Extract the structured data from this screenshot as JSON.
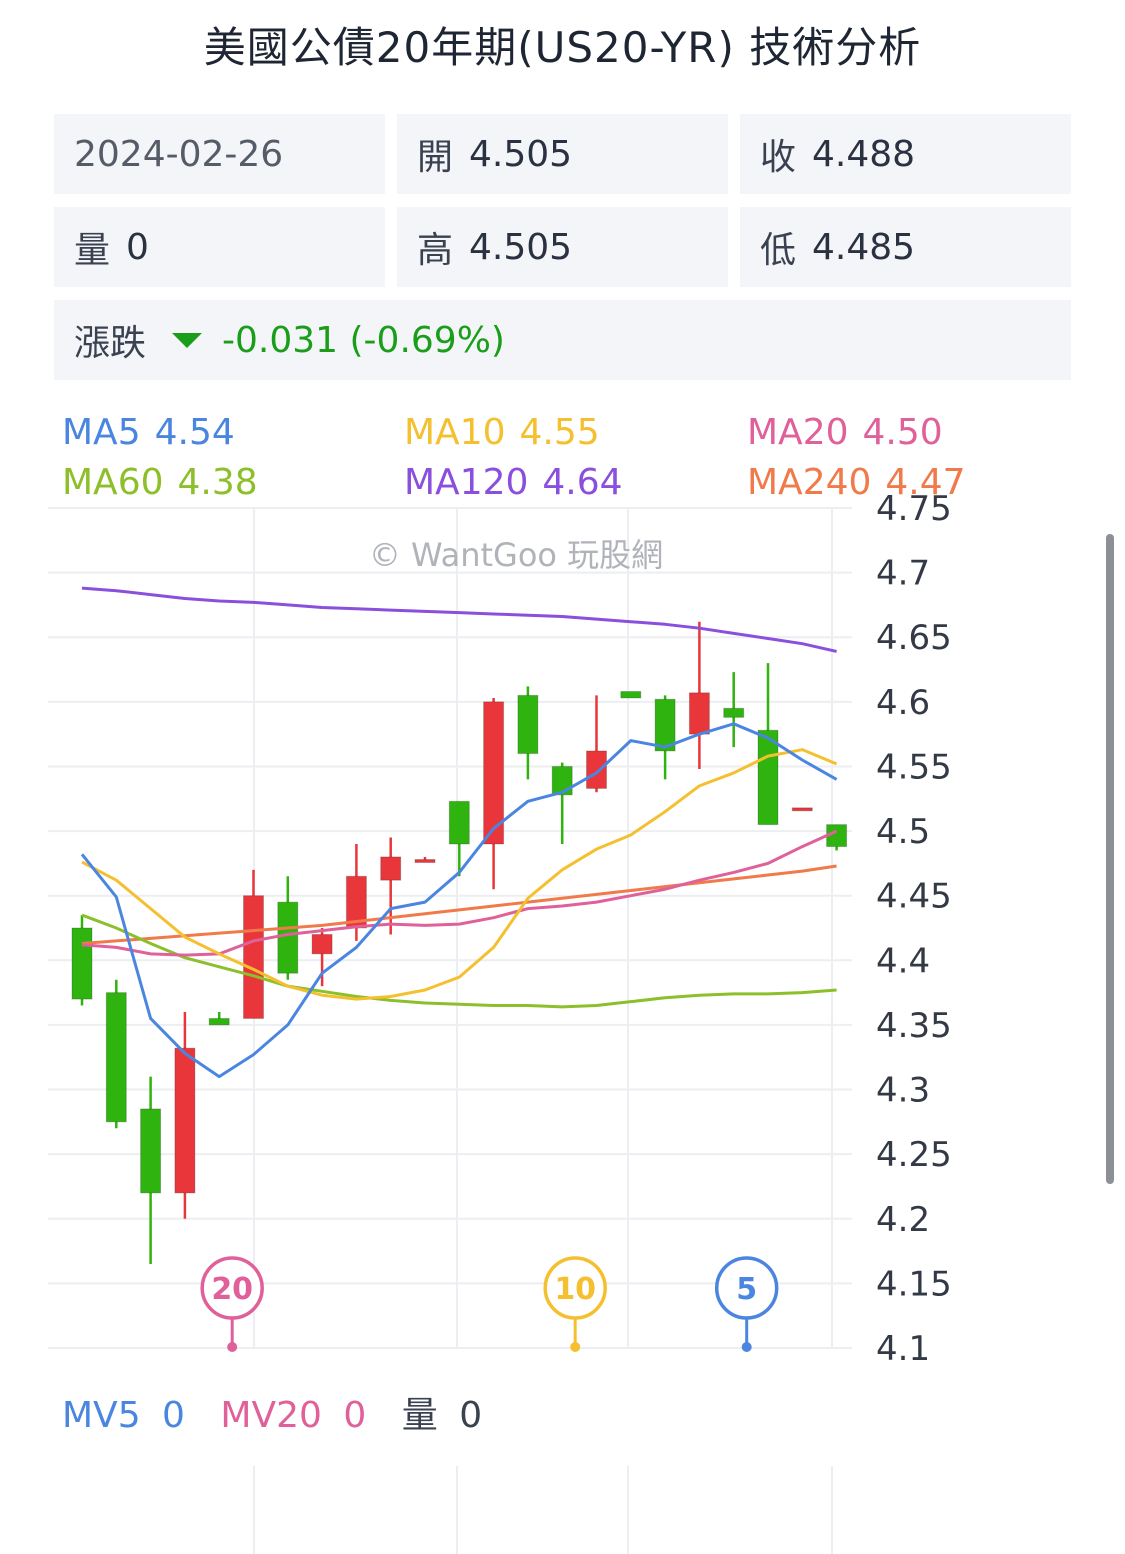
{
  "title": "美國公債20年期(US20-YR) 技術分析",
  "quote": {
    "date": "2024-02-26",
    "open_label": "開",
    "open": "4.505",
    "close_label": "收",
    "close": "4.488",
    "volume_label": "量",
    "volume": "0",
    "high_label": "高",
    "high": "4.505",
    "low_label": "低",
    "low": "4.485",
    "change_label": "漲跌",
    "change": "-0.031 (-0.69%)"
  },
  "ma_legend": [
    {
      "label": "MA5",
      "value": "4.54",
      "color": "#4a86e0"
    },
    {
      "label": "MA10",
      "value": "4.55",
      "color": "#f4c030"
    },
    {
      "label": "MA20",
      "value": "4.50",
      "color": "#e0609a"
    },
    {
      "label": "MA60",
      "value": "4.38",
      "color": "#8cbf2a"
    },
    {
      "label": "MA120",
      "value": "4.64",
      "color": "#8a4fdc"
    },
    {
      "label": "MA240",
      "value": "4.47",
      "color": "#f07a4a"
    }
  ],
  "watermark": "© WantGoo 玩股網",
  "volume_legend": {
    "mv5_label": "MV5",
    "mv5": "0",
    "mv5_color": "#4a86e0",
    "mv20_label": "MV20",
    "mv20": "0",
    "mv20_color": "#e0609a",
    "vol_label": "量",
    "vol": "0"
  },
  "colors": {
    "up": "#e8363a",
    "down": "#2fb30f",
    "grid": "#eceef1",
    "axis_text": "#333a46"
  },
  "chart_data": {
    "type": "candlestick",
    "ylim": [
      4.1,
      4.75
    ],
    "y_ticks": [
      "4.75",
      "4.7",
      "4.65",
      "4.6",
      "4.55",
      "4.5",
      "4.45",
      "4.4",
      "4.35",
      "4.3",
      "4.25",
      "4.2",
      "4.15",
      "4.1"
    ],
    "candles": [
      {
        "o": 4.425,
        "h": 4.435,
        "l": 4.365,
        "c": 4.37
      },
      {
        "o": 4.375,
        "h": 4.385,
        "l": 4.27,
        "c": 4.275
      },
      {
        "o": 4.285,
        "h": 4.31,
        "l": 4.165,
        "c": 4.22
      },
      {
        "o": 4.22,
        "h": 4.36,
        "l": 4.2,
        "c": 4.332
      },
      {
        "o": 4.355,
        "h": 4.36,
        "l": 4.35,
        "c": 4.35
      },
      {
        "o": 4.355,
        "h": 4.47,
        "l": 4.355,
        "c": 4.45
      },
      {
        "o": 4.445,
        "h": 4.465,
        "l": 4.385,
        "c": 4.39
      },
      {
        "o": 4.405,
        "h": 4.425,
        "l": 4.38,
        "c": 4.42
      },
      {
        "o": 4.425,
        "h": 4.49,
        "l": 4.415,
        "c": 4.465
      },
      {
        "o": 4.462,
        "h": 4.495,
        "l": 4.42,
        "c": 4.48
      },
      {
        "o": 4.478,
        "h": 4.48,
        "l": 4.478,
        "c": 4.478
      },
      {
        "o": 4.523,
        "h": 4.523,
        "l": 4.465,
        "c": 4.49
      },
      {
        "o": 4.49,
        "h": 4.603,
        "l": 4.455,
        "c": 4.6
      },
      {
        "o": 4.605,
        "h": 4.612,
        "l": 4.54,
        "c": 4.56
      },
      {
        "o": 4.55,
        "h": 4.553,
        "l": 4.49,
        "c": 4.528
      },
      {
        "o": 4.533,
        "h": 4.605,
        "l": 4.53,
        "c": 4.562
      },
      {
        "o": 4.608,
        "h": 4.608,
        "l": 4.603,
        "c": 4.603
      },
      {
        "o": 4.602,
        "h": 4.605,
        "l": 4.54,
        "c": 4.562
      },
      {
        "o": 4.575,
        "h": 4.662,
        "l": 4.548,
        "c": 4.607
      },
      {
        "o": 4.595,
        "h": 4.623,
        "l": 4.565,
        "c": 4.588
      },
      {
        "o": 4.578,
        "h": 4.63,
        "l": 4.505,
        "c": 4.505
      },
      {
        "o": 4.518,
        "h": 4.518,
        "l": 4.518,
        "c": 4.518
      },
      {
        "o": 4.505,
        "h": 4.505,
        "l": 4.485,
        "c": 4.488
      }
    ],
    "series": [
      {
        "name": "MA120",
        "color": "#8a4fdc",
        "values": [
          4.688,
          4.686,
          4.683,
          4.68,
          4.678,
          4.677,
          4.675,
          4.673,
          4.672,
          4.671,
          4.67,
          4.669,
          4.668,
          4.667,
          4.666,
          4.664,
          4.662,
          4.66,
          4.657,
          4.653,
          4.649,
          4.645,
          4.639
        ]
      },
      {
        "name": "MA240",
        "color": "#f07a4a",
        "values": [
          4.413,
          4.415,
          4.417,
          4.419,
          4.421,
          4.423,
          4.425,
          4.427,
          4.43,
          4.433,
          4.436,
          4.439,
          4.442,
          4.445,
          4.448,
          4.451,
          4.454,
          4.457,
          4.46,
          4.463,
          4.466,
          4.469,
          4.473
        ]
      },
      {
        "name": "MA60",
        "color": "#8cbf2a",
        "values": [
          4.435,
          4.425,
          4.413,
          4.402,
          4.395,
          4.388,
          4.38,
          4.376,
          4.372,
          4.369,
          4.367,
          4.366,
          4.365,
          4.365,
          4.364,
          4.365,
          4.368,
          4.371,
          4.373,
          4.374,
          4.374,
          4.375,
          4.377
        ]
      },
      {
        "name": "MA20",
        "color": "#e0609a",
        "values": [
          4.412,
          4.41,
          4.405,
          4.404,
          4.405,
          4.415,
          4.42,
          4.423,
          4.426,
          4.428,
          4.427,
          4.428,
          4.433,
          4.44,
          4.442,
          4.445,
          4.45,
          4.455,
          4.462,
          4.468,
          4.475,
          4.488,
          4.5
        ]
      },
      {
        "name": "MA10",
        "color": "#f4c030",
        "values": [
          4.476,
          4.462,
          4.44,
          4.418,
          4.405,
          4.393,
          4.38,
          4.373,
          4.37,
          4.372,
          4.377,
          4.387,
          4.41,
          4.448,
          4.47,
          4.486,
          4.497,
          4.515,
          4.535,
          4.545,
          4.558,
          4.563,
          4.552
        ]
      },
      {
        "name": "MA5",
        "color": "#4a86e0",
        "values": [
          4.482,
          4.449,
          4.355,
          4.328,
          4.31,
          4.327,
          4.35,
          4.39,
          4.41,
          4.44,
          4.445,
          4.468,
          4.502,
          4.523,
          4.53,
          4.545,
          4.57,
          4.565,
          4.575,
          4.583,
          4.572,
          4.555,
          4.54
        ]
      }
    ],
    "ma_markers": [
      {
        "label": "20",
        "index": 4,
        "color": "#e0609a"
      },
      {
        "label": "10",
        "index": 14,
        "color": "#f4c030"
      },
      {
        "label": "5",
        "index": 19,
        "color": "#4a86e0"
      }
    ]
  }
}
